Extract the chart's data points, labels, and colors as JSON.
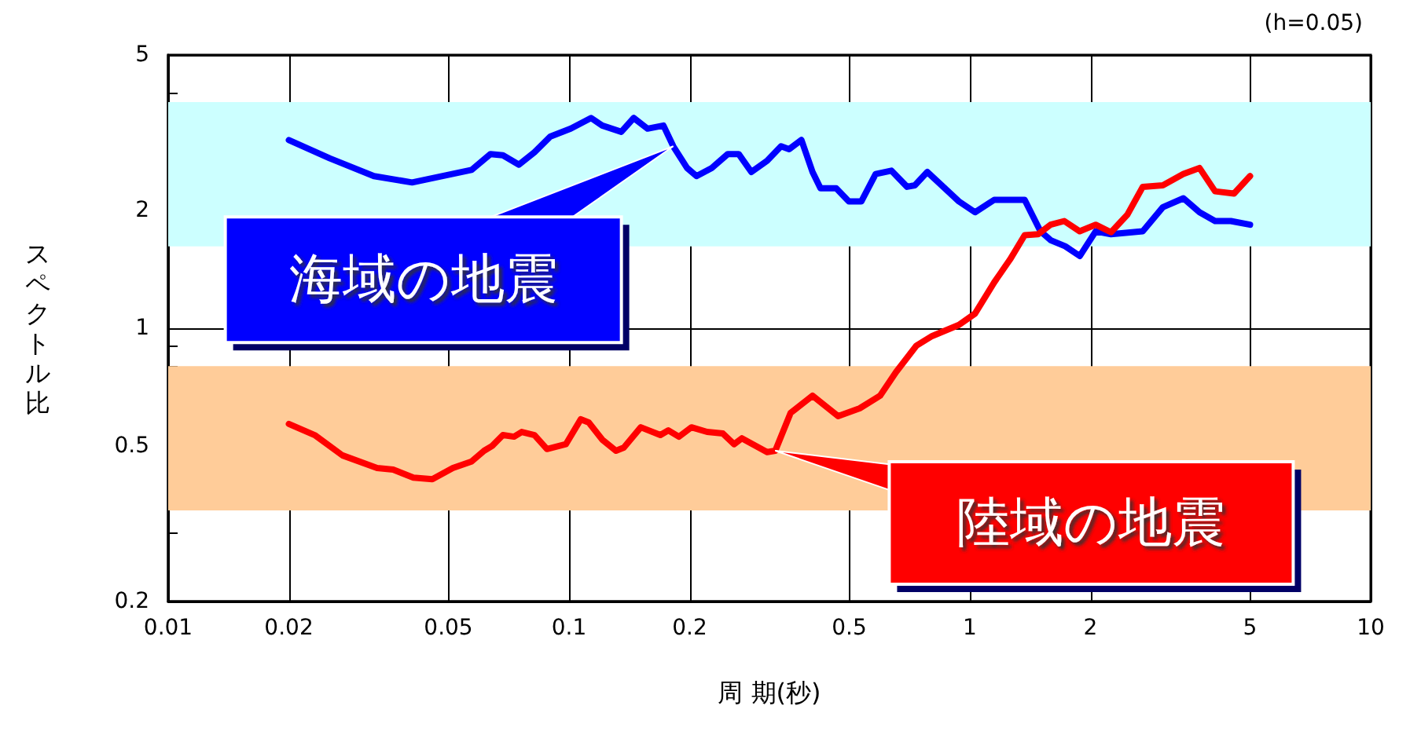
{
  "chart_data": {
    "type": "line",
    "xlabel": "周 期(秒)",
    "ylabel": "スペクトル比",
    "annotations": [
      "(h=0.05)",
      {
        "text": "海域の地震",
        "x": 0.182,
        "y": 2.92
      },
      {
        "text": "陸域の地震",
        "x": 0.327,
        "y": 0.486
      }
    ],
    "xlim": [
      0.01,
      10
    ],
    "xticks": [
      0.01,
      0.02,
      0.05,
      0.1,
      0.2,
      0.5,
      1,
      2,
      5,
      10
    ],
    "ylim": [
      0.2,
      5
    ],
    "yticks": [
      0.2,
      {
        "value": 0.3,
        "label": null
      },
      {
        "value": 0.4,
        "label": null
      },
      0.5,
      {
        "value": 0.6,
        "label": null
      },
      {
        "value": 0.7,
        "label": null
      },
      {
        "value": 0.8,
        "label": null
      },
      {
        "value": 0.9,
        "label": null
      },
      1,
      2,
      {
        "value": 3,
        "label": null
      },
      {
        "value": 4,
        "label": null
      },
      5
    ],
    "log": "xy",
    "grid": true,
    "bands": [
      {
        "axis": "y",
        "from": 1.62,
        "to": 3.79,
        "color": "#ccffff"
      },
      {
        "axis": "y",
        "from": 0.342,
        "to": 0.8,
        "color": "#ffcc99"
      }
    ],
    "series": [
      {
        "color": "#0000ff",
        "x": [
          0.02,
          0.0253,
          0.0326,
          0.0406,
          0.0571,
          0.0637,
          0.0684,
          0.075,
          0.082,
          0.0897,
          0.101,
          0.1135,
          0.121,
          0.135,
          0.145,
          0.157,
          0.172,
          0.182,
          0.197,
          0.208,
          0.227,
          0.249,
          0.265,
          0.285,
          0.312,
          0.338,
          0.354,
          0.38,
          0.405,
          0.424,
          0.464,
          0.499,
          0.536,
          0.582,
          0.637,
          0.697,
          0.729,
          0.783,
          0.939,
          1.03,
          1.15,
          1.37,
          1.5,
          1.59,
          1.73,
          1.88,
          2.06,
          2.25,
          2.7,
          3.03,
          3.41,
          3.74,
          4.09,
          4.48,
          5
        ],
        "values": [
          3.03,
          2.72,
          2.45,
          2.36,
          2.54,
          2.79,
          2.77,
          2.62,
          2.82,
          3.09,
          3.24,
          3.45,
          3.3,
          3.18,
          3.45,
          3.24,
          3.3,
          2.92,
          2.57,
          2.45,
          2.57,
          2.79,
          2.79,
          2.51,
          2.68,
          2.92,
          2.87,
          3.03,
          2.51,
          2.28,
          2.28,
          2.11,
          2.11,
          2.48,
          2.53,
          2.3,
          2.32,
          2.51,
          2.11,
          1.98,
          2.13,
          2.13,
          1.77,
          1.68,
          1.62,
          1.53,
          1.77,
          1.74,
          1.77,
          2.04,
          2.15,
          1.98,
          1.88,
          1.88,
          1.84
        ]
      },
      {
        "color": "#ff0000",
        "x": [
          0.02,
          0.0232,
          0.0272,
          0.0332,
          0.0364,
          0.0409,
          0.0456,
          0.0513,
          0.0571,
          0.0614,
          0.0643,
          0.0684,
          0.0729,
          0.0762,
          0.082,
          0.0881,
          0.0982,
          0.107,
          0.112,
          0.121,
          0.131,
          0.137,
          0.151,
          0.169,
          0.177,
          0.188,
          0.202,
          0.221,
          0.242,
          0.258,
          0.27,
          0.312,
          0.327,
          0.357,
          0.405,
          0.469,
          0.531,
          0.597,
          0.654,
          0.736,
          0.805,
          0.939,
          1.03,
          1.15,
          1.26,
          1.37,
          1.48,
          1.59,
          1.72,
          1.88,
          2.06,
          2.25,
          2.47,
          2.7,
          3.03,
          3.41,
          3.74,
          4.09,
          4.56,
          5
        ],
        "values": [
          0.569,
          0.533,
          0.473,
          0.439,
          0.435,
          0.415,
          0.411,
          0.439,
          0.456,
          0.486,
          0.5,
          0.533,
          0.528,
          0.543,
          0.533,
          0.491,
          0.505,
          0.585,
          0.574,
          0.519,
          0.486,
          0.495,
          0.558,
          0.533,
          0.548,
          0.528,
          0.558,
          0.543,
          0.538,
          0.505,
          0.523,
          0.482,
          0.486,
          0.607,
          0.672,
          0.596,
          0.624,
          0.672,
          0.772,
          0.903,
          0.955,
          1.02,
          1.09,
          1.31,
          1.5,
          1.73,
          1.74,
          1.84,
          1.88,
          1.77,
          1.84,
          1.76,
          1.95,
          2.3,
          2.32,
          2.48,
          2.57,
          2.24,
          2.21,
          2.45
        ]
      }
    ]
  }
}
